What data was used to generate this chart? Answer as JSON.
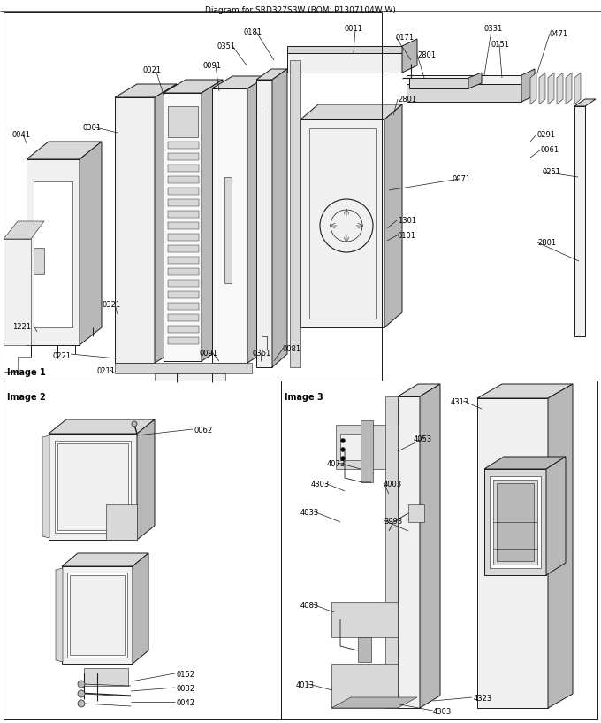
{
  "figsize": [
    6.8,
    8.17
  ],
  "dpi": 100,
  "bg": "#ffffff",
  "lc": "#1a1a1a",
  "fc_light": "#f0f0f0",
  "fc_mid": "#d8d8d8",
  "fc_dark": "#b8b8b8",
  "lw_main": 0.7,
  "lw_thin": 0.4,
  "fs_label": 6.0,
  "fs_section": 7.0,
  "header": "Diagram for SRD327S3W (BOM: P1307104W W)",
  "img1_label": "Image 1",
  "img2_label": "Image 2",
  "img3_label": "Image 3"
}
